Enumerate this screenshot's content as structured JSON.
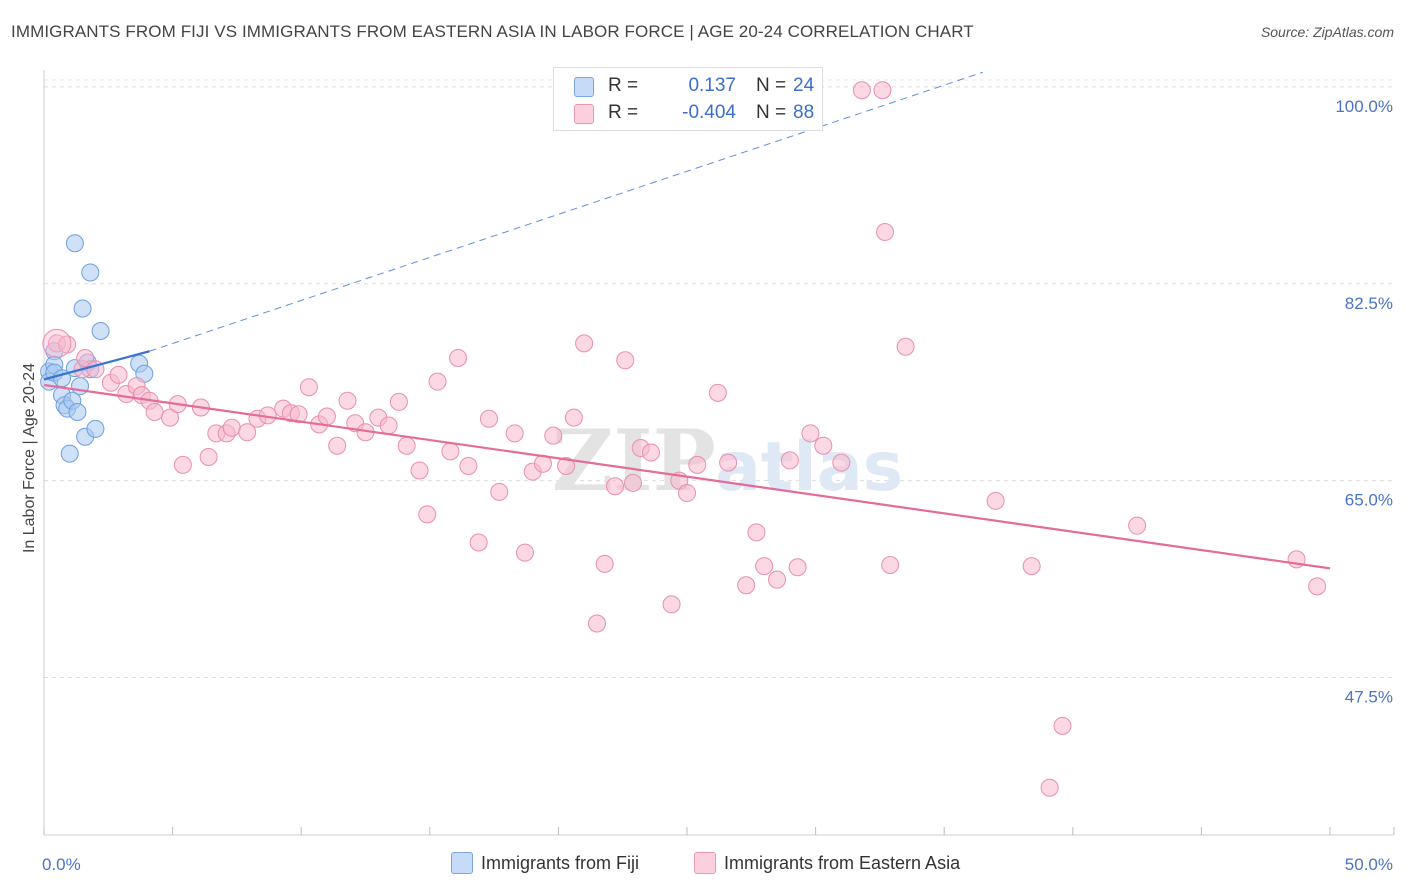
{
  "title": "IMMIGRANTS FROM FIJI VS IMMIGRANTS FROM EASTERN ASIA IN LABOR FORCE | AGE 20-24 CORRELATION CHART",
  "source": "Source: ZipAtlas.com",
  "watermark": {
    "zip": "ZIP",
    "atlas": "atlas"
  },
  "legend": {
    "r_label": "R =",
    "n_label": "N =",
    "rows": [
      {
        "r": "0.137",
        "n": "24",
        "color": "#a8c8f0",
        "border": "#6f9fe0"
      },
      {
        "r": "-0.404",
        "n": "88",
        "color": "#f7b8cc",
        "border": "#e890ad"
      }
    ]
  },
  "bottom_legend": [
    "Immigrants from Fiji",
    "Immigrants from Eastern Asia"
  ],
  "chart_data": {
    "type": "scatter",
    "title": "IMMIGRANTS FROM FIJI VS IMMIGRANTS FROM EASTERN ASIA IN LABOR FORCE | AGE 20-24 CORRELATION CHART",
    "xlabel": "",
    "ylabel": "In Labor Force | Age 20-24",
    "xlim": [
      0,
      50
    ],
    "ylim": [
      33.5,
      101.5
    ],
    "x_tick_labels": [
      "0.0%",
      "50.0%"
    ],
    "y_ticks": [
      47.5,
      65.0,
      82.5,
      100.0
    ],
    "y_tick_labels": [
      "47.5%",
      "65.0%",
      "82.5%",
      "100.0%"
    ],
    "grid": true,
    "legend_position": "top-center",
    "series": [
      {
        "name": "Immigrants from Fiji",
        "color": "#a8c8f0",
        "stroke": "#6f9fe0",
        "line_color": "#3a73d0",
        "points": [
          [
            0.2,
            74.7
          ],
          [
            0.2,
            73.8
          ],
          [
            0.4,
            76.5
          ],
          [
            0.4,
            75.3
          ],
          [
            0.4,
            74.6
          ],
          [
            0.7,
            74.1
          ],
          [
            0.7,
            72.6
          ],
          [
            0.8,
            71.7
          ],
          [
            0.9,
            71.4
          ],
          [
            1.0,
            67.4
          ],
          [
            1.1,
            72.1
          ],
          [
            1.2,
            75.0
          ],
          [
            1.2,
            86.1
          ],
          [
            1.3,
            71.1
          ],
          [
            1.4,
            73.4
          ],
          [
            1.5,
            80.3
          ],
          [
            1.6,
            68.9
          ],
          [
            1.7,
            75.5
          ],
          [
            1.8,
            83.5
          ],
          [
            1.8,
            74.9
          ],
          [
            2.0,
            69.6
          ],
          [
            2.2,
            78.3
          ],
          [
            3.7,
            75.4
          ],
          [
            3.9,
            74.5
          ]
        ],
        "trend_solid": [
          [
            0,
            74.0
          ],
          [
            4.1,
            76.5
          ]
        ],
        "trend_dashed": [
          [
            4.1,
            76.5
          ],
          [
            36.5,
            101.3
          ]
        ]
      },
      {
        "name": "Immigrants from Eastern Asia",
        "color": "#f7b8cc",
        "stroke": "#e890ad",
        "line_color": "#e46b9a",
        "points": [
          [
            0.5,
            77.2
          ],
          [
            0.9,
            77.1
          ],
          [
            1.5,
            74.9
          ],
          [
            1.6,
            75.9
          ],
          [
            2.0,
            74.9
          ],
          [
            2.6,
            73.7
          ],
          [
            2.9,
            74.4
          ],
          [
            3.2,
            72.7
          ],
          [
            3.6,
            73.4
          ],
          [
            3.8,
            72.6
          ],
          [
            4.1,
            72.1
          ],
          [
            4.3,
            71.1
          ],
          [
            4.9,
            70.6
          ],
          [
            5.2,
            71.8
          ],
          [
            5.4,
            66.4
          ],
          [
            6.1,
            71.5
          ],
          [
            6.4,
            67.1
          ],
          [
            6.7,
            69.2
          ],
          [
            7.1,
            69.2
          ],
          [
            7.3,
            69.7
          ],
          [
            7.9,
            69.3
          ],
          [
            8.3,
            70.5
          ],
          [
            8.7,
            70.8
          ],
          [
            9.3,
            71.4
          ],
          [
            9.6,
            71.0
          ],
          [
            9.9,
            70.9
          ],
          [
            10.3,
            73.3
          ],
          [
            10.7,
            70.0
          ],
          [
            11.0,
            70.7
          ],
          [
            11.4,
            68.1
          ],
          [
            11.8,
            72.1
          ],
          [
            12.1,
            70.1
          ],
          [
            12.5,
            69.3
          ],
          [
            13.0,
            70.6
          ],
          [
            13.4,
            69.9
          ],
          [
            13.8,
            72.0
          ],
          [
            14.1,
            68.1
          ],
          [
            14.6,
            65.9
          ],
          [
            14.9,
            62.0
          ],
          [
            15.3,
            73.8
          ],
          [
            15.8,
            67.6
          ],
          [
            16.1,
            75.9
          ],
          [
            16.5,
            66.3
          ],
          [
            16.9,
            59.5
          ],
          [
            17.3,
            70.5
          ],
          [
            17.7,
            64.0
          ],
          [
            18.3,
            69.2
          ],
          [
            18.7,
            58.6
          ],
          [
            19.0,
            65.8
          ],
          [
            19.4,
            66.5
          ],
          [
            19.8,
            69.0
          ],
          [
            20.3,
            66.3
          ],
          [
            20.6,
            70.6
          ],
          [
            21.0,
            77.2
          ],
          [
            21.5,
            52.3
          ],
          [
            21.8,
            57.6
          ],
          [
            22.2,
            64.5
          ],
          [
            22.6,
            75.7
          ],
          [
            22.9,
            64.8
          ],
          [
            23.2,
            67.9
          ],
          [
            23.6,
            67.5
          ],
          [
            24.4,
            54.0
          ],
          [
            24.7,
            65.0
          ],
          [
            25.0,
            63.9
          ],
          [
            25.4,
            66.4
          ],
          [
            26.2,
            72.8
          ],
          [
            26.6,
            66.6
          ],
          [
            27.3,
            55.7
          ],
          [
            27.7,
            60.4
          ],
          [
            28.0,
            57.4
          ],
          [
            28.5,
            56.2
          ],
          [
            29.0,
            66.8
          ],
          [
            29.3,
            57.3
          ],
          [
            29.8,
            69.2
          ],
          [
            30.3,
            68.1
          ],
          [
            31.0,
            66.6
          ],
          [
            31.8,
            99.7
          ],
          [
            32.6,
            99.7
          ],
          [
            32.7,
            87.1
          ],
          [
            32.9,
            57.5
          ],
          [
            33.5,
            76.9
          ],
          [
            37.0,
            63.2
          ],
          [
            38.4,
            57.4
          ],
          [
            39.1,
            37.7
          ],
          [
            39.6,
            43.2
          ],
          [
            42.5,
            61.0
          ],
          [
            48.7,
            58.0
          ],
          [
            49.5,
            55.6
          ]
        ],
        "trend_solid": [
          [
            0,
            73.5
          ],
          [
            50,
            57.2
          ]
        ]
      }
    ]
  }
}
